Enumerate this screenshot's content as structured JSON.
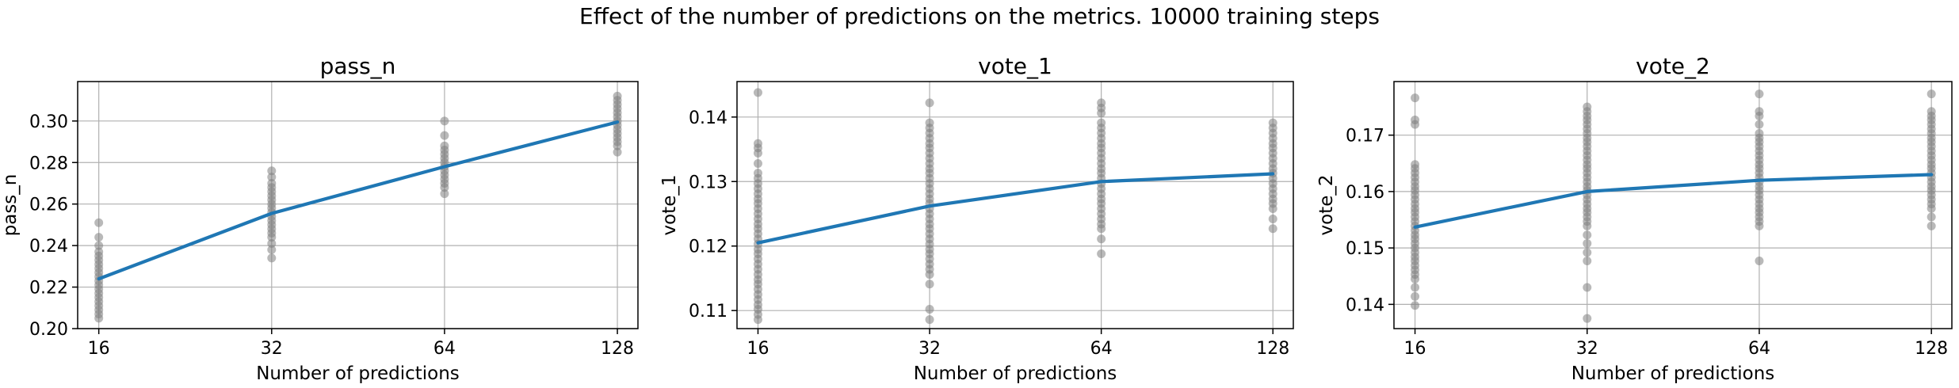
{
  "figure": {
    "suptitle": "Effect of the number of predictions on the metrics. 10000 training steps"
  },
  "colors": {
    "line": "#1f77b4",
    "points": "#808080",
    "grid": "#b0b0b0",
    "axes": "#000000"
  },
  "chart_data": [
    {
      "type": "line",
      "title": "pass_n",
      "xlabel": "Number of predictions",
      "ylabel": "pass_n",
      "x_scale": "log2",
      "grid": true,
      "xticks": [
        16,
        32,
        64,
        128
      ],
      "xtick_labels": [
        "16",
        "32",
        "64",
        "128"
      ],
      "yticks": [
        0.2,
        0.22,
        0.24,
        0.26,
        0.28,
        0.3
      ],
      "ytick_labels": [
        "0.20",
        "0.22",
        "0.24",
        "0.26",
        "0.28",
        "0.30"
      ],
      "xlim": [
        14.7,
        139
      ],
      "ylim": [
        0.2,
        0.319
      ],
      "series": [
        {
          "kind": "line",
          "x": [
            16,
            32,
            64,
            128
          ],
          "y": [
            0.224,
            0.2555,
            0.278,
            0.2995
          ]
        },
        {
          "kind": "scatter",
          "points": [
            [
              16,
              [
                0.205,
                0.207,
                0.209,
                0.211,
                0.213,
                0.215,
                0.217,
                0.219,
                0.221,
                0.223,
                0.225,
                0.227,
                0.229,
                0.231,
                0.233,
                0.235,
                0.237,
                0.24,
                0.244,
                0.251
              ]
            ],
            [
              32,
              [
                0.234,
                0.238,
                0.241,
                0.244,
                0.246,
                0.248,
                0.25,
                0.252,
                0.254,
                0.256,
                0.258,
                0.26,
                0.262,
                0.264,
                0.266,
                0.268,
                0.27,
                0.273,
                0.276
              ]
            ],
            [
              64,
              [
                0.265,
                0.268,
                0.27,
                0.272,
                0.274,
                0.276,
                0.278,
                0.28,
                0.282,
                0.284,
                0.286,
                0.288,
                0.293,
                0.3
              ]
            ],
            [
              128,
              [
                0.285,
                0.288,
                0.29,
                0.292,
                0.294,
                0.296,
                0.298,
                0.3,
                0.302,
                0.304,
                0.306,
                0.308,
                0.31,
                0.312
              ]
            ]
          ]
        }
      ]
    },
    {
      "type": "line",
      "title": "vote_1",
      "xlabel": "Number of predictions",
      "ylabel": "vote_1",
      "x_scale": "log2",
      "grid": true,
      "xticks": [
        16,
        32,
        64,
        128
      ],
      "xtick_labels": [
        "16",
        "32",
        "64",
        "128"
      ],
      "yticks": [
        0.11,
        0.12,
        0.13,
        0.14
      ],
      "ytick_labels": [
        "0.11",
        "0.12",
        "0.13",
        "0.14"
      ],
      "xlim": [
        14.7,
        139
      ],
      "ylim": [
        0.1072,
        0.1455
      ],
      "series": [
        {
          "kind": "line",
          "x": [
            16,
            32,
            64,
            128
          ],
          "y": [
            0.1205,
            0.1262,
            0.13,
            0.1312
          ]
        },
        {
          "kind": "scatter",
          "points": [
            [
              16,
              [
                0.1086,
                0.1094,
                0.1102,
                0.1109,
                0.1117,
                0.1125,
                0.1133,
                0.1141,
                0.1148,
                0.1156,
                0.1164,
                0.1172,
                0.118,
                0.1188,
                0.1195,
                0.1203,
                0.1211,
                0.1219,
                0.1227,
                0.1234,
                0.1242,
                0.125,
                0.1258,
                0.1266,
                0.1273,
                0.1281,
                0.1289,
                0.1297,
                0.1305,
                0.1313,
                0.1328,
                0.1344,
                0.1352,
                0.1359,
                0.1438
              ]
            ],
            [
              32,
              [
                0.1086,
                0.1102,
                0.1141,
                0.1156,
                0.1164,
                0.1172,
                0.118,
                0.1188,
                0.1195,
                0.1203,
                0.1211,
                0.1219,
                0.1227,
                0.1234,
                0.1242,
                0.125,
                0.1258,
                0.1266,
                0.1273,
                0.1281,
                0.1289,
                0.1297,
                0.1305,
                0.1313,
                0.132,
                0.1328,
                0.1336,
                0.1344,
                0.1352,
                0.1359,
                0.1367,
                0.1375,
                0.1383,
                0.1391,
                0.1422
              ]
            ],
            [
              64,
              [
                0.1188,
                0.1211,
                0.1227,
                0.1234,
                0.1242,
                0.125,
                0.1258,
                0.1266,
                0.1273,
                0.1281,
                0.1289,
                0.1297,
                0.1305,
                0.1313,
                0.132,
                0.1328,
                0.1336,
                0.1344,
                0.1352,
                0.1359,
                0.1367,
                0.1375,
                0.1383,
                0.1391,
                0.1406,
                0.1414,
                0.1422
              ]
            ],
            [
              128,
              [
                0.1227,
                0.1242,
                0.1258,
                0.1266,
                0.1273,
                0.1281,
                0.1289,
                0.1297,
                0.1305,
                0.1313,
                0.132,
                0.1328,
                0.1336,
                0.1344,
                0.1352,
                0.1359,
                0.1367,
                0.1375,
                0.1383,
                0.1391
              ]
            ]
          ]
        }
      ]
    },
    {
      "type": "line",
      "title": "vote_2",
      "xlabel": "Number of predictions",
      "ylabel": "vote_2",
      "x_scale": "log2",
      "grid": true,
      "xticks": [
        16,
        32,
        64,
        128
      ],
      "xtick_labels": [
        "16",
        "32",
        "64",
        "128"
      ],
      "yticks": [
        0.14,
        0.15,
        0.16,
        0.17
      ],
      "ytick_labels": [
        "0.14",
        "0.15",
        "0.16",
        "0.17"
      ],
      "xlim": [
        14.7,
        139
      ],
      "ylim": [
        0.1357,
        0.1795
      ],
      "series": [
        {
          "kind": "line",
          "x": [
            16,
            32,
            64,
            128
          ],
          "y": [
            0.1537,
            0.16,
            0.162,
            0.163
          ]
        },
        {
          "kind": "scatter",
          "points": [
            [
              16,
              [
                0.1398,
                0.1414,
                0.143,
                0.1445,
                0.1453,
                0.1461,
                0.1469,
                0.1477,
                0.1484,
                0.1492,
                0.15,
                0.1508,
                0.1516,
                0.1523,
                0.1531,
                0.1539,
                0.1547,
                0.1555,
                0.1563,
                0.157,
                0.1578,
                0.1586,
                0.1594,
                0.1602,
                0.1609,
                0.1617,
                0.1625,
                0.1633,
                0.1641,
                0.1648,
                0.1719,
                0.1727,
                0.1766
              ]
            ],
            [
              32,
              [
                0.1375,
                0.143,
                0.1477,
                0.1492,
                0.1508,
                0.1523,
                0.1539,
                0.1547,
                0.1555,
                0.1563,
                0.157,
                0.1578,
                0.1586,
                0.1594,
                0.1602,
                0.1609,
                0.1617,
                0.1625,
                0.1633,
                0.1641,
                0.1648,
                0.1656,
                0.1664,
                0.1672,
                0.168,
                0.1688,
                0.1695,
                0.1703,
                0.1711,
                0.1719,
                0.1727,
                0.1734,
                0.1742,
                0.175
              ]
            ],
            [
              64,
              [
                0.1477,
                0.1539,
                0.1547,
                0.1555,
                0.1563,
                0.157,
                0.1578,
                0.1586,
                0.1594,
                0.1602,
                0.1609,
                0.1617,
                0.1625,
                0.1633,
                0.1641,
                0.1648,
                0.1656,
                0.1664,
                0.1672,
                0.168,
                0.1688,
                0.1695,
                0.1703,
                0.1719,
                0.1734,
                0.1742,
                0.1773
              ]
            ],
            [
              128,
              [
                0.1539,
                0.1555,
                0.157,
                0.1578,
                0.1586,
                0.1594,
                0.1602,
                0.1609,
                0.1617,
                0.1625,
                0.1633,
                0.1641,
                0.1648,
                0.1656,
                0.1664,
                0.1672,
                0.168,
                0.1688,
                0.1695,
                0.1703,
                0.1711,
                0.1719,
                0.1727,
                0.1734,
                0.1742,
                0.1773
              ]
            ]
          ]
        }
      ]
    }
  ]
}
